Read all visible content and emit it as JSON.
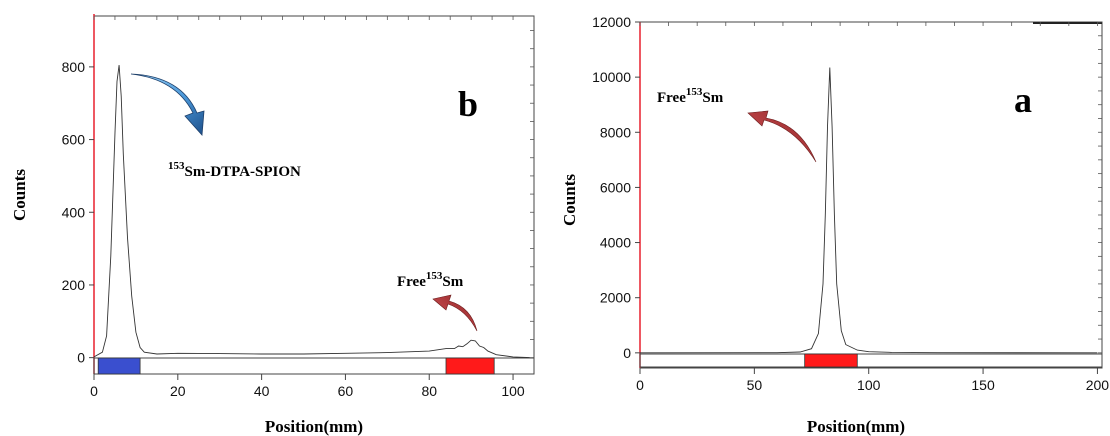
{
  "chart_data": [
    {
      "type": "line",
      "panel_label": "b",
      "xlabel": "Position(mm)",
      "ylabel": "Counts",
      "xlim": [
        0,
        105
      ],
      "ylim": [
        -45,
        940
      ],
      "xticks": [
        0,
        20,
        40,
        60,
        80,
        100
      ],
      "yticks": [
        0,
        200,
        400,
        600,
        800
      ],
      "grid": false,
      "series": [
        {
          "x": [
            0,
            2,
            3,
            4,
            5,
            5.5,
            6,
            6.5,
            7,
            8,
            9,
            10,
            11,
            12,
            15,
            20,
            30,
            40,
            50,
            60,
            70,
            80,
            84,
            86,
            87,
            88,
            89,
            90,
            91,
            92,
            93,
            94,
            96,
            100,
            104
          ],
          "y": [
            2,
            15,
            60,
            280,
            620,
            760,
            805,
            720,
            560,
            330,
            170,
            70,
            28,
            15,
            10,
            12,
            11,
            10,
            10,
            12,
            14,
            18,
            25,
            25,
            32,
            30,
            38,
            48,
            46,
            32,
            28,
            18,
            8,
            2,
            0
          ]
        }
      ],
      "regions": [
        {
          "x0": 1,
          "x1": 11,
          "color": "#3a4fcf"
        },
        {
          "x0": 84,
          "x1": 95.5,
          "color": "#ff1a1a"
        }
      ],
      "annotations": [
        {
          "sup": "153",
          "text": "Sm-DTPA-SPION"
        },
        {
          "pre": "Free",
          "sup": "153",
          "text": "Sm"
        }
      ]
    },
    {
      "type": "line",
      "panel_label": "a",
      "xlabel": "Position(mm)",
      "ylabel": "Counts",
      "xlim": [
        0,
        202
      ],
      "ylim": [
        -550,
        12000
      ],
      "xticks": [
        0,
        50,
        100,
        150,
        200
      ],
      "yticks": [
        0,
        2000,
        4000,
        6000,
        8000,
        10000,
        12000
      ],
      "grid": false,
      "series": [
        {
          "x": [
            0,
            60,
            70,
            75,
            78,
            80,
            81,
            82,
            83,
            84,
            85,
            86,
            88,
            90,
            95,
            100,
            110,
            130,
            200
          ],
          "y": [
            0,
            5,
            30,
            150,
            700,
            2500,
            5000,
            8200,
            10350,
            8200,
            5000,
            2500,
            800,
            300,
            100,
            40,
            15,
            5,
            0
          ]
        }
      ],
      "regions": [
        {
          "x0": 72,
          "x1": 95,
          "color": "#ff1a1a"
        }
      ],
      "annotations": [
        {
          "pre": "Free",
          "sup": "153",
          "text": "Sm"
        }
      ]
    }
  ]
}
